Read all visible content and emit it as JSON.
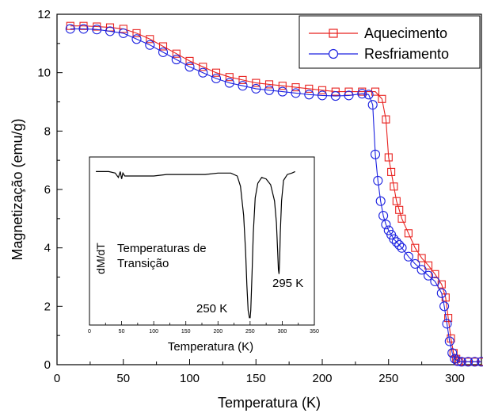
{
  "chart_data": {
    "type": "scatter",
    "xlabel": "Temperatura (K)",
    "ylabel": "Magnetização (emu/g)",
    "xlim": [
      0,
      320
    ],
    "ylim": [
      0,
      12
    ],
    "x_ticks": [
      0,
      50,
      100,
      150,
      200,
      250,
      300
    ],
    "y_ticks": [
      0,
      2,
      4,
      6,
      8,
      10,
      12
    ],
    "x_tick_labels": [
      "0",
      "50",
      "100",
      "150",
      "200",
      "250",
      "300"
    ],
    "y_tick_labels": [
      "0",
      "2",
      "4",
      "6",
      "8",
      "10",
      "12"
    ],
    "legend_position": "top-right",
    "series": [
      {
        "name": "Aquecimento",
        "color": "#e8221f",
        "marker": "square",
        "x": [
          10,
          20,
          30,
          40,
          50,
          60,
          70,
          80,
          90,
          100,
          110,
          120,
          130,
          140,
          150,
          160,
          170,
          180,
          190,
          200,
          210,
          220,
          230,
          240,
          245,
          248,
          250,
          252,
          254,
          256,
          258,
          260,
          265,
          270,
          275,
          280,
          285,
          290,
          293,
          295,
          297,
          299,
          301,
          303,
          305,
          310,
          315,
          320
        ],
        "y": [
          11.6,
          11.6,
          11.58,
          11.55,
          11.5,
          11.35,
          11.15,
          10.9,
          10.65,
          10.4,
          10.2,
          10.0,
          9.85,
          9.75,
          9.65,
          9.6,
          9.55,
          9.5,
          9.45,
          9.4,
          9.35,
          9.35,
          9.35,
          9.35,
          9.1,
          8.4,
          7.1,
          6.6,
          6.1,
          5.6,
          5.3,
          5.0,
          4.5,
          4.0,
          3.65,
          3.4,
          3.1,
          2.75,
          2.3,
          1.6,
          0.9,
          0.4,
          0.2,
          0.12,
          0.1,
          0.1,
          0.1,
          0.1
        ]
      },
      {
        "name": "Resfriamento",
        "color": "#1c22e0",
        "marker": "circle",
        "x": [
          10,
          20,
          30,
          40,
          50,
          60,
          70,
          80,
          90,
          100,
          110,
          120,
          130,
          140,
          150,
          160,
          170,
          180,
          190,
          200,
          210,
          220,
          230,
          235,
          238,
          240,
          242,
          244,
          246,
          248,
          250,
          252,
          254,
          256,
          258,
          260,
          265,
          270,
          275,
          280,
          285,
          290,
          292,
          294,
          296,
          298,
          300,
          302,
          305,
          310,
          315,
          320
        ],
        "y": [
          11.5,
          11.5,
          11.48,
          11.42,
          11.35,
          11.15,
          10.95,
          10.7,
          10.45,
          10.2,
          10.0,
          9.8,
          9.65,
          9.55,
          9.45,
          9.4,
          9.35,
          9.3,
          9.25,
          9.22,
          9.2,
          9.22,
          9.28,
          9.25,
          8.9,
          7.2,
          6.3,
          5.6,
          5.1,
          4.8,
          4.6,
          4.45,
          4.3,
          4.2,
          4.1,
          4.0,
          3.7,
          3.45,
          3.25,
          3.05,
          2.85,
          2.45,
          2.0,
          1.4,
          0.8,
          0.4,
          0.2,
          0.12,
          0.1,
          0.1,
          0.1,
          0.1
        ]
      }
    ],
    "inset": {
      "type": "line",
      "xlabel": "Temperatura (K)",
      "ylabel": "dM/dT",
      "xlim": [
        0,
        350
      ],
      "x_ticks": [
        0,
        50,
        100,
        150,
        200,
        250,
        300,
        350
      ],
      "x_tick_labels": [
        "0",
        "50",
        "100",
        "150",
        "200",
        "250",
        "300",
        "350"
      ],
      "annotation": "Temperaturas de\nTransição",
      "peak_labels": [
        "250 K",
        "295 K"
      ],
      "ylim": [
        -1.05,
        0.1
      ],
      "x": [
        10,
        20,
        30,
        40,
        45,
        48,
        50,
        52,
        55,
        60,
        80,
        100,
        120,
        150,
        180,
        200,
        220,
        230,
        235,
        240,
        243,
        245,
        247,
        249,
        250,
        251,
        253,
        255,
        258,
        262,
        268,
        275,
        282,
        288,
        291,
        293,
        294,
        295,
        296,
        297,
        299,
        302,
        308,
        315,
        320
      ],
      "y": [
        0.0,
        0.0,
        0.0,
        -0.01,
        -0.04,
        0.0,
        -0.05,
        -0.01,
        -0.03,
        -0.03,
        -0.03,
        -0.03,
        -0.02,
        -0.02,
        -0.02,
        -0.01,
        -0.01,
        -0.03,
        -0.1,
        -0.3,
        -0.55,
        -0.78,
        -0.95,
        -1.0,
        -1.0,
        -0.95,
        -0.7,
        -0.42,
        -0.18,
        -0.08,
        -0.04,
        -0.05,
        -0.09,
        -0.2,
        -0.35,
        -0.55,
        -0.67,
        -0.7,
        -0.6,
        -0.42,
        -0.2,
        -0.06,
        -0.02,
        -0.01,
        0.0
      ]
    }
  }
}
